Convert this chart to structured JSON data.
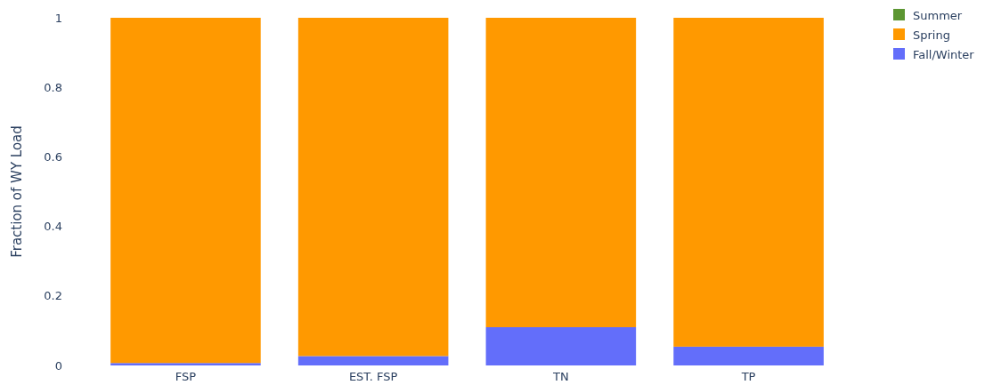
{
  "chart_data": {
    "type": "bar",
    "stacked": true,
    "categories": [
      "FSP",
      "EST. FSP",
      "TN",
      "TP"
    ],
    "ylabel": "Fraction of WY Load",
    "ylim": [
      0,
      1
    ],
    "yticks": [
      0,
      0.2,
      0.4,
      0.6,
      0.8,
      1
    ],
    "legend": "top right",
    "series": [
      {
        "name": "Fall/Winter",
        "color": "#636efa",
        "values": [
          0.007,
          0.027,
          0.11,
          0.054
        ]
      },
      {
        "name": "Spring",
        "color": "#ff9900",
        "values": [
          0.993,
          0.973,
          0.89,
          0.946
        ]
      },
      {
        "name": "Summer",
        "color": "#5c9632",
        "values": [
          0,
          0,
          0,
          0
        ]
      }
    ]
  }
}
